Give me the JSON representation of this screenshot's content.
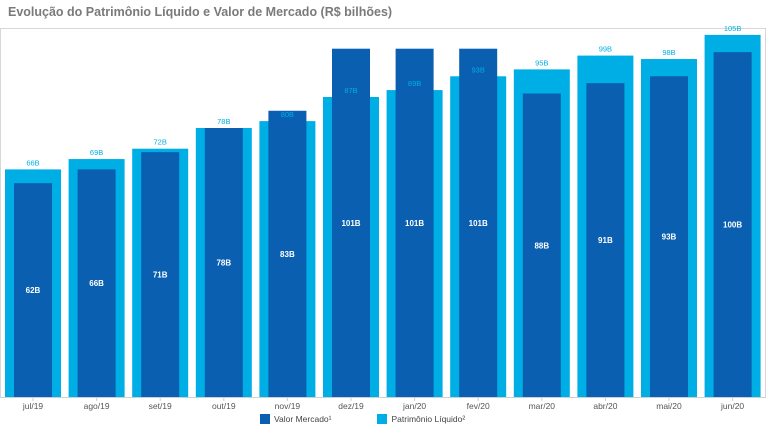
{
  "chart_data": {
    "type": "bar",
    "title": "Evolução do Patrimônio Líquido e Valor de Mercado (R$ bilhões)",
    "categories": [
      "jul/19",
      "ago/19",
      "set/19",
      "out/19",
      "nov/19",
      "dez/19",
      "jan/20",
      "fev/20",
      "mar/20",
      "abr/20",
      "mai/20",
      "jun/20"
    ],
    "series": [
      {
        "name": "Patrimônio Líquido²",
        "color": "#00aee6",
        "values": [
          66,
          69,
          72,
          78,
          80,
          87,
          89,
          93,
          95,
          99,
          98,
          105
        ],
        "labels": [
          "66B",
          "69B",
          "72B",
          "78B",
          "80B",
          "87B",
          "89B",
          "93B",
          "95B",
          "99B",
          "98B",
          "105B"
        ]
      },
      {
        "name": "Valor Mercado¹",
        "color": "#0a5fb0",
        "values": [
          62,
          66,
          71,
          78,
          83,
          101,
          101,
          101,
          88,
          91,
          93,
          100
        ],
        "labels": [
          "62B",
          "66B",
          "71B",
          "78B",
          "83B",
          "101B",
          "101B",
          "101B",
          "88B",
          "91B",
          "93B",
          "100B"
        ]
      }
    ],
    "ylim": [
      0,
      107
    ],
    "grid": false,
    "legend_position": "bottom"
  }
}
